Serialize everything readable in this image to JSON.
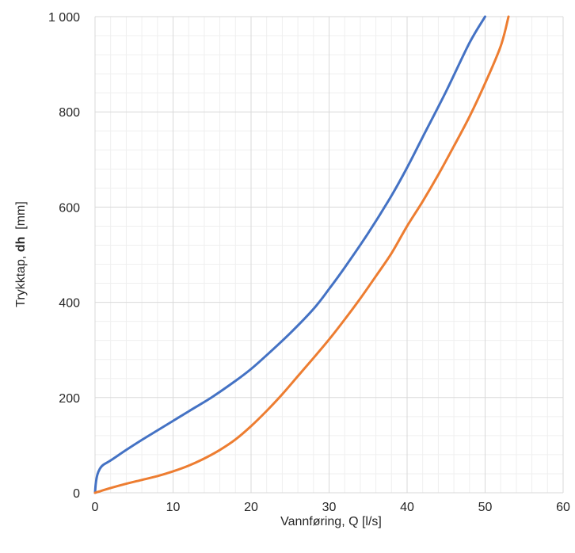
{
  "chart_data": {
    "type": "line",
    "title": "",
    "xlabel": "Vannføring, Q [l/s]",
    "ylabel": {
      "prefix": "Trykktap, ",
      "bold": "dh",
      "suffix": "  [mm]"
    },
    "xlim": [
      0,
      60
    ],
    "ylim": [
      0,
      1000
    ],
    "x_ticks": [
      {
        "value": 0,
        "label": "0"
      },
      {
        "value": 10,
        "label": "10"
      },
      {
        "value": 20,
        "label": "20"
      },
      {
        "value": 30,
        "label": "30"
      },
      {
        "value": 40,
        "label": "40"
      },
      {
        "value": 50,
        "label": "50"
      },
      {
        "value": 60,
        "label": "60"
      }
    ],
    "y_ticks": [
      {
        "value": 0,
        "label": "0"
      },
      {
        "value": 200,
        "label": "200"
      },
      {
        "value": 400,
        "label": "400"
      },
      {
        "value": 600,
        "label": "600"
      },
      {
        "value": 800,
        "label": "800"
      },
      {
        "value": 1000,
        "label": "1 000"
      }
    ],
    "grid": {
      "major": true,
      "minor": true,
      "x_minor_step": 2,
      "y_minor_step": 40
    },
    "legend": "none",
    "series": [
      {
        "color": "#4472C4",
        "x": [
          0,
          0.1,
          0.3,
          0.6,
          1,
          2,
          4,
          6,
          8,
          10,
          12,
          15,
          18,
          20,
          22,
          25,
          28,
          30,
          32,
          35,
          38,
          40,
          42,
          45,
          48,
          50
        ],
        "y": [
          0,
          20,
          38,
          50,
          58,
          68,
          90,
          111,
          131,
          151,
          171,
          201,
          235,
          260,
          289,
          335,
          386,
          428,
          473,
          545,
          624,
          683,
          747,
          843,
          945,
          1000
        ]
      },
      {
        "color": "#ED7D31",
        "x": [
          0,
          2,
          4,
          6,
          8,
          10,
          12,
          14,
          16,
          18,
          20,
          22,
          24,
          26,
          28,
          30,
          32,
          34,
          36,
          38,
          40,
          42,
          44,
          46,
          48,
          50,
          52,
          53
        ],
        "y": [
          0,
          10,
          19,
          27,
          35,
          45,
          57,
          72,
          90,
          112,
          140,
          172,
          207,
          245,
          283,
          322,
          364,
          408,
          455,
          503,
          560,
          612,
          668,
          728,
          790,
          860,
          938,
          1000
        ]
      }
    ]
  }
}
